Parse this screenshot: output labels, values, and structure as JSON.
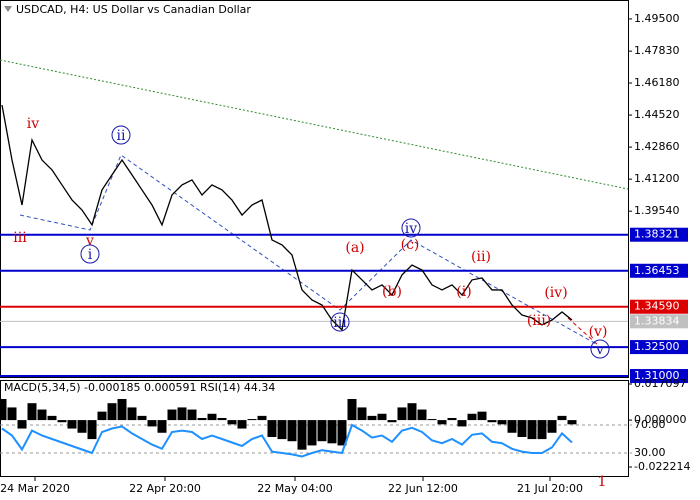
{
  "chart_data": {
    "type": "line",
    "title": "USDCAD, H4:  US Dollar vs Canadian Dollar",
    "series": [
      {
        "name": "USDCAD",
        "color": "#000000",
        "values": [
          1.4504,
          1.4219,
          1.3986,
          1.4323,
          1.4219,
          1.4168,
          1.409,
          1.4012,
          1.396,
          1.3883,
          1.4064,
          1.4142,
          1.4219,
          1.4142,
          1.4064,
          1.3986,
          1.3883,
          1.4038,
          1.409,
          1.4116,
          1.4038,
          1.409,
          1.4064,
          1.4012,
          1.3934,
          1.3986,
          1.4012,
          1.3805,
          1.3779,
          1.3727,
          1.3546,
          1.3494,
          1.3468,
          1.339,
          1.3339,
          1.3649,
          1.3598,
          1.3546,
          1.3572,
          1.352,
          1.3624,
          1.3675,
          1.3649,
          1.3572,
          1.3546,
          1.3572,
          1.352,
          1.3598,
          1.3608,
          1.3546,
          1.3546,
          1.3468,
          1.3416,
          1.3401,
          1.3365,
          1.339,
          1.3432,
          1.339
        ]
      }
    ],
    "xlim": [
      -0.2,
      62.6
    ],
    "xticks": [
      {
        "value": 3.3,
        "label": "24 Mar 2020"
      },
      {
        "value": 16.3,
        "label": "22 Apr 20:00"
      },
      {
        "value": 29.3,
        "label": "22 May 04:00"
      },
      {
        "value": 42.1,
        "label": "22 Jun 12:00"
      },
      {
        "value": 54.8,
        "label": "21 Jul 20:00"
      }
    ],
    "ylim": [
      1.3095,
      1.5048
    ],
    "yticks": [
      {
        "value": 1.495,
        "label": "1.49500"
      },
      {
        "value": 1.4783,
        "label": "1.47830"
      },
      {
        "value": 1.4618,
        "label": "1.46180"
      },
      {
        "value": 1.4452,
        "label": "1.44520"
      },
      {
        "value": 1.4286,
        "label": "1.42860"
      },
      {
        "value": 1.412,
        "label": "1.41200"
      },
      {
        "value": 1.3954,
        "label": "1.39540"
      }
    ],
    "levels": [
      {
        "value": 1.38321,
        "color": "#0000cc"
      },
      {
        "value": 1.36453,
        "color": "#0000cc"
      },
      {
        "value": 1.3459,
        "label": "1.34590",
        "color": "#dd0000"
      },
      {
        "value": 1.33834,
        "color": "#c0c0c0"
      },
      {
        "value": 1.325,
        "label": "1.32500",
        "color": "#0000cc"
      },
      {
        "value": 1.31,
        "label": "1.31000",
        "color": "#0000cc"
      }
    ],
    "annotations": [
      {
        "text": "iv",
        "color": "#cc0000",
        "circled": false
      },
      {
        "text": "iii",
        "color": "#cc0000",
        "circled": false
      },
      {
        "text": "v",
        "color": "#cc0000",
        "circled": false
      },
      {
        "text": "i",
        "color": "#1a1aaa",
        "circled": true
      },
      {
        "text": "ii",
        "color": "#1a1aaa",
        "circled": true
      },
      {
        "text": "iii",
        "color": "#1a1aaa",
        "circled": true
      },
      {
        "text": "iv",
        "color": "#1a1aaa",
        "circled": true
      },
      {
        "text": "(a)",
        "color": "#cc0000",
        "circled": false
      },
      {
        "text": "(b)",
        "color": "#cc0000",
        "circled": false
      },
      {
        "text": "(c)",
        "color": "#cc0000",
        "circled": false
      },
      {
        "text": "(i)",
        "color": "#cc0000",
        "circled": false
      },
      {
        "text": "(ii)",
        "color": "#cc0000",
        "circled": false
      },
      {
        "text": "(iii)",
        "color": "#cc0000",
        "circled": false
      },
      {
        "text": "(iv)",
        "color": "#cc0000",
        "circled": false
      },
      {
        "text": "(v)",
        "color": "#cc0000",
        "circled": false
      },
      {
        "text": "v",
        "color": "#1a1aaa",
        "circled": true
      },
      {
        "text": "1",
        "color": "#cc0000",
        "circled": false
      }
    ],
    "indicator": {
      "title": "MACD(5,34,5) -0.000185 0.000591 RSI(14) 44.34",
      "macd_color": "#000000",
      "rsi_color": "#1e90ff",
      "macd_ylim": [
        -0.022214,
        0.017097
      ],
      "macd_ticks": [
        {
          "value": 0.017097,
          "label": "0.017097"
        },
        {
          "value": 0,
          "label": "0.000000"
        },
        {
          "value": -0.022214,
          "label": "-0.022214"
        }
      ],
      "rsi_ylim": [
        0,
        100
      ],
      "rsi_ticks": [
        {
          "value": 70,
          "label": "70.00"
        },
        {
          "value": 30,
          "label": "30.00"
        }
      ],
      "macd": [
        0.01,
        0.006,
        -0.004,
        0.008,
        0.005,
        0.002,
        -0.001,
        -0.004,
        -0.006,
        -0.009,
        0.004,
        0.008,
        0.01,
        0.006,
        0.002,
        -0.003,
        -0.006,
        0.005,
        0.006,
        0.005,
        0.001,
        0.003,
        0.001,
        -0.002,
        -0.004,
        0.0005,
        0.002,
        -0.008,
        -0.009,
        -0.01,
        -0.014,
        -0.012,
        -0.01,
        -0.011,
        -0.012,
        0.01,
        0.006,
        0.002,
        0.003,
        -0.001,
        0.006,
        0.008,
        0.005,
        0.0005,
        -0.002,
        0.001,
        -0.003,
        0.003,
        0.004,
        -0.001,
        -0.002,
        -0.006,
        -0.008,
        -0.009,
        -0.009,
        -0.006,
        0.002,
        -0.002
      ],
      "rsi": [
        65,
        55,
        35,
        62,
        55,
        50,
        45,
        40,
        35,
        30,
        60,
        65,
        68,
        58,
        50,
        42,
        36,
        60,
        62,
        60,
        50,
        55,
        50,
        45,
        40,
        50,
        55,
        32,
        30,
        28,
        25,
        30,
        34,
        32,
        30,
        70,
        62,
        52,
        55,
        46,
        62,
        66,
        60,
        48,
        44,
        50,
        42,
        56,
        58,
        46,
        44,
        36,
        32,
        30,
        30,
        38,
        58,
        45
      ]
    }
  }
}
